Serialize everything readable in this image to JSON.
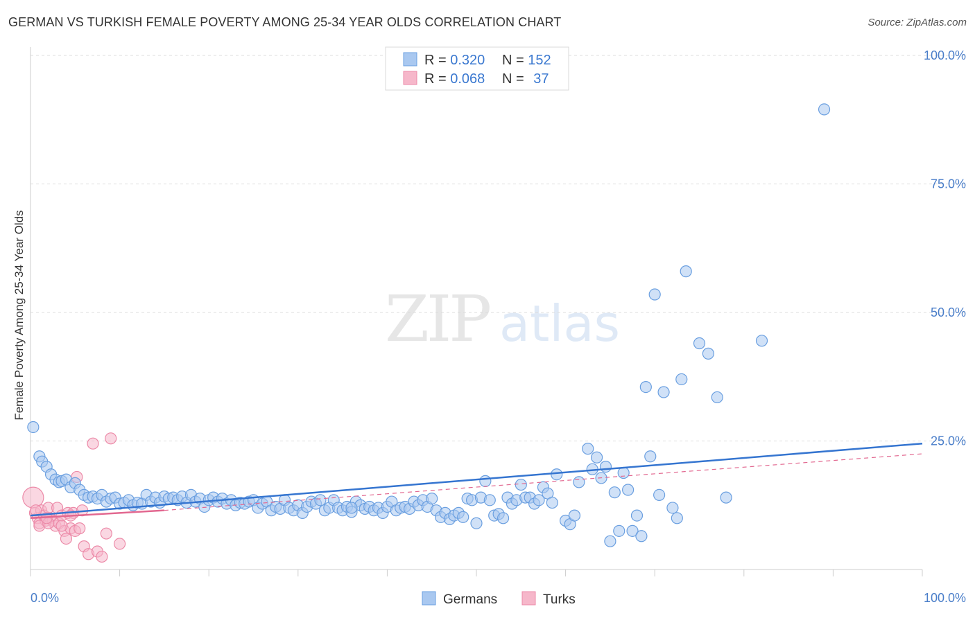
{
  "title": "GERMAN VS TURKISH FEMALE POVERTY AMONG 25-34 YEAR OLDS CORRELATION CHART",
  "source": "Source: ZipAtlas.com",
  "watermark": {
    "zip": "ZIP",
    "atlas": "atlas"
  },
  "colors": {
    "germans_fill": "#a9c8f0",
    "germans_stroke": "#6a9fe0",
    "germans_line": "#3575d0",
    "turks_fill": "#f6b7ca",
    "turks_stroke": "#ec8aa8",
    "turks_line": "#e26890",
    "tick_text": "#4a7ec9",
    "grid": "#dcdcdc"
  },
  "legend": {
    "rows": [
      {
        "r_label": "R = ",
        "r_value": "0.320",
        "n_label": "N = ",
        "n_value": "152"
      },
      {
        "r_label": "R = ",
        "r_value": "0.068",
        "n_label": "N = ",
        "n_value": "37"
      }
    ]
  },
  "chart_data": {
    "type": "scatter",
    "ylabel": "Female Poverty Among 25-34 Year Olds",
    "xlim": [
      0,
      100
    ],
    "ylim": [
      0,
      100
    ],
    "x_tick_labels": [
      {
        "value": 0,
        "label": "0.0%"
      },
      {
        "value": 100,
        "label": "100.0%"
      }
    ],
    "y_tick_labels": [
      {
        "value": 25,
        "label": "25.0%"
      },
      {
        "value": 50,
        "label": "50.0%"
      },
      {
        "value": 75,
        "label": "75.0%"
      },
      {
        "value": 100,
        "label": "100.0%"
      }
    ],
    "legend_position": "bottom-center",
    "series": [
      {
        "name": "Germans",
        "trend": {
          "x": [
            0,
            100
          ],
          "y": [
            10.5,
            24.5
          ]
        },
        "points": [
          [
            0.3,
            27.7
          ],
          [
            1.0,
            22.0
          ],
          [
            1.3,
            21.0
          ],
          [
            1.8,
            20.0
          ],
          [
            2.3,
            18.5
          ],
          [
            2.8,
            17.5
          ],
          [
            3.2,
            17.0
          ],
          [
            3.5,
            17.2
          ],
          [
            4.0,
            17.5
          ],
          [
            4.5,
            16.0
          ],
          [
            5.0,
            16.8
          ],
          [
            5.5,
            15.5
          ],
          [
            6.0,
            14.5
          ],
          [
            6.5,
            14.0
          ],
          [
            7.0,
            14.2
          ],
          [
            7.5,
            13.8
          ],
          [
            8.0,
            14.5
          ],
          [
            8.5,
            13.2
          ],
          [
            9.0,
            13.8
          ],
          [
            9.5,
            14.0
          ],
          [
            10.0,
            12.8
          ],
          [
            10.5,
            13.0
          ],
          [
            11.0,
            13.5
          ],
          [
            11.5,
            12.5
          ],
          [
            12.0,
            13.0
          ],
          [
            12.5,
            12.8
          ],
          [
            13.0,
            14.5
          ],
          [
            13.5,
            13.2
          ],
          [
            14.0,
            14.0
          ],
          [
            14.5,
            13.0
          ],
          [
            15.0,
            14.2
          ],
          [
            15.5,
            13.8
          ],
          [
            16.0,
            14.0
          ],
          [
            16.5,
            13.5
          ],
          [
            17.0,
            14.2
          ],
          [
            17.5,
            13.0
          ],
          [
            18.0,
            14.5
          ],
          [
            18.5,
            13.2
          ],
          [
            19.0,
            13.8
          ],
          [
            19.5,
            12.2
          ],
          [
            20.0,
            13.5
          ],
          [
            20.5,
            14.0
          ],
          [
            21.0,
            13.2
          ],
          [
            21.5,
            13.8
          ],
          [
            22.0,
            12.8
          ],
          [
            22.5,
            13.5
          ],
          [
            23.0,
            12.5
          ],
          [
            23.5,
            13.0
          ],
          [
            24.0,
            12.8
          ],
          [
            24.5,
            13.2
          ],
          [
            25.0,
            13.5
          ],
          [
            25.5,
            12.0
          ],
          [
            26.0,
            12.8
          ],
          [
            26.5,
            13.2
          ],
          [
            27.0,
            11.5
          ],
          [
            27.5,
            12.2
          ],
          [
            28.0,
            11.8
          ],
          [
            28.5,
            13.5
          ],
          [
            29.0,
            12.0
          ],
          [
            29.5,
            11.5
          ],
          [
            30.0,
            12.5
          ],
          [
            30.5,
            11.0
          ],
          [
            31.0,
            12.2
          ],
          [
            31.5,
            13.2
          ],
          [
            32.0,
            12.8
          ],
          [
            32.5,
            13.5
          ],
          [
            33.0,
            11.5
          ],
          [
            33.5,
            12.0
          ],
          [
            34.0,
            13.5
          ],
          [
            34.5,
            12.0
          ],
          [
            35.0,
            11.5
          ],
          [
            35.5,
            12.2
          ],
          [
            36.0,
            11.2
          ],
          [
            36.5,
            13.2
          ],
          [
            37.0,
            12.5
          ],
          [
            37.5,
            11.8
          ],
          [
            38.0,
            12.2
          ],
          [
            38.5,
            11.5
          ],
          [
            39.0,
            12.0
          ],
          [
            39.5,
            11.0
          ],
          [
            40.0,
            12.2
          ],
          [
            40.5,
            13.2
          ],
          [
            41.0,
            11.5
          ],
          [
            41.5,
            12.0
          ],
          [
            42.0,
            12.2
          ],
          [
            42.5,
            11.8
          ],
          [
            43.0,
            13.2
          ],
          [
            43.5,
            12.5
          ],
          [
            44.0,
            13.5
          ],
          [
            44.5,
            12.2
          ],
          [
            45.0,
            13.8
          ],
          [
            45.5,
            11.5
          ],
          [
            46.0,
            10.2
          ],
          [
            46.5,
            11.0
          ],
          [
            47.0,
            9.8
          ],
          [
            47.5,
            10.5
          ],
          [
            48.0,
            11.0
          ],
          [
            48.5,
            10.2
          ],
          [
            49.0,
            13.8
          ],
          [
            49.5,
            13.5
          ],
          [
            50.0,
            9.0
          ],
          [
            50.5,
            14.0
          ],
          [
            51.0,
            17.2
          ],
          [
            51.5,
            13.5
          ],
          [
            52.0,
            10.5
          ],
          [
            52.5,
            10.8
          ],
          [
            53.0,
            10.0
          ],
          [
            53.5,
            14.0
          ],
          [
            54.0,
            12.8
          ],
          [
            54.5,
            13.5
          ],
          [
            55.0,
            16.5
          ],
          [
            55.5,
            14.0
          ],
          [
            56.0,
            14.0
          ],
          [
            56.5,
            12.8
          ],
          [
            57.0,
            13.5
          ],
          [
            57.5,
            16.0
          ],
          [
            58.0,
            14.8
          ],
          [
            58.5,
            13.0
          ],
          [
            59.0,
            18.5
          ],
          [
            60.0,
            9.5
          ],
          [
            60.5,
            8.8
          ],
          [
            61.0,
            10.5
          ],
          [
            61.5,
            17.0
          ],
          [
            62.5,
            23.5
          ],
          [
            63.0,
            19.5
          ],
          [
            63.5,
            21.8
          ],
          [
            64.0,
            17.8
          ],
          [
            64.5,
            20.0
          ],
          [
            65.0,
            5.5
          ],
          [
            65.5,
            15.0
          ],
          [
            66.0,
            7.5
          ],
          [
            66.5,
            18.8
          ],
          [
            67.0,
            15.5
          ],
          [
            67.5,
            7.5
          ],
          [
            68.0,
            10.5
          ],
          [
            68.5,
            6.5
          ],
          [
            69.0,
            35.5
          ],
          [
            69.5,
            22.0
          ],
          [
            70.0,
            53.5
          ],
          [
            70.5,
            14.5
          ],
          [
            71.0,
            34.5
          ],
          [
            72.0,
            12.0
          ],
          [
            72.5,
            10.0
          ],
          [
            73.0,
            37.0
          ],
          [
            73.5,
            58.0
          ],
          [
            75.0,
            44.0
          ],
          [
            76.0,
            42.0
          ],
          [
            77.0,
            33.5
          ],
          [
            78.0,
            14.0
          ],
          [
            82.0,
            44.5
          ],
          [
            89.0,
            89.5
          ],
          [
            36.0,
            12.0
          ]
        ]
      },
      {
        "name": "Turks",
        "trend": {
          "x": [
            0,
            15
          ],
          "y": [
            10.0,
            11.5
          ]
        },
        "dashed_extension": {
          "x": [
            15,
            100
          ],
          "y": [
            11.5,
            22.5
          ]
        },
        "points": [
          [
            0.3,
            14.0
          ],
          [
            0.5,
            11.0
          ],
          [
            0.8,
            10.0
          ],
          [
            1.0,
            9.0
          ],
          [
            1.2,
            11.5
          ],
          [
            1.5,
            10.5
          ],
          [
            1.7,
            9.5
          ],
          [
            2.0,
            12.0
          ],
          [
            2.2,
            10.0
          ],
          [
            2.5,
            9.5
          ],
          [
            2.8,
            8.5
          ],
          [
            3.0,
            12.0
          ],
          [
            3.2,
            9.0
          ],
          [
            3.5,
            10.5
          ],
          [
            3.8,
            7.5
          ],
          [
            4.0,
            6.0
          ],
          [
            4.2,
            11.0
          ],
          [
            4.5,
            8.0
          ],
          [
            4.8,
            11.0
          ],
          [
            5.0,
            7.5
          ],
          [
            5.2,
            18.0
          ],
          [
            5.5,
            8.0
          ],
          [
            5.8,
            11.5
          ],
          [
            6.0,
            4.5
          ],
          [
            6.5,
            3.0
          ],
          [
            7.0,
            24.5
          ],
          [
            7.5,
            3.5
          ],
          [
            8.0,
            2.5
          ],
          [
            8.5,
            7.0
          ],
          [
            9.0,
            25.5
          ],
          [
            10.0,
            5.0
          ],
          [
            1.0,
            8.5
          ],
          [
            2.0,
            9.0
          ],
          [
            3.5,
            8.5
          ],
          [
            4.5,
            10.5
          ],
          [
            1.8,
            10.0
          ],
          [
            0.6,
            11.5
          ]
        ]
      }
    ]
  },
  "bottom_legend": [
    {
      "label": "Germans"
    },
    {
      "label": "Turks"
    }
  ]
}
